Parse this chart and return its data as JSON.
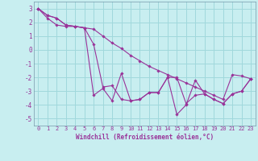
{
  "xlabel": "Windchill (Refroidissement éolien,°C)",
  "background_color": "#c8eef0",
  "grid_color": "#a0d8dc",
  "line_color": "#993399",
  "x_data": [
    0,
    1,
    2,
    3,
    4,
    5,
    6,
    7,
    8,
    9,
    10,
    11,
    12,
    13,
    14,
    15,
    16,
    17,
    18,
    19,
    20,
    21,
    22,
    23
  ],
  "series": [
    [
      3.0,
      2.5,
      2.3,
      1.8,
      1.7,
      1.6,
      1.5,
      1.0,
      0.5,
      0.1,
      -0.4,
      -0.8,
      -1.2,
      -1.5,
      -1.8,
      -2.1,
      -2.4,
      -2.7,
      -3.0,
      -3.3,
      -3.6,
      -1.8,
      -1.9,
      -2.1
    ],
    [
      3.0,
      2.5,
      2.3,
      1.8,
      1.7,
      1.6,
      -3.3,
      -2.8,
      -3.7,
      -1.7,
      -3.7,
      -3.6,
      -3.1,
      -3.1,
      -2.0,
      -4.7,
      -4.0,
      -2.2,
      -3.2,
      -3.6,
      -3.9,
      -3.2,
      -3.0,
      -2.1
    ],
    [
      3.0,
      2.3,
      1.8,
      1.7,
      1.7,
      1.6,
      0.4,
      -2.7,
      -2.6,
      -3.6,
      -3.7,
      -3.6,
      -3.1,
      -3.1,
      -2.0,
      -2.0,
      -3.9,
      -3.3,
      -3.2,
      -3.6,
      -3.9,
      -3.2,
      -3.0,
      -2.1
    ]
  ],
  "xlim": [
    -0.5,
    23.5
  ],
  "ylim": [
    -5.5,
    3.5
  ],
  "yticks": [
    -5,
    -4,
    -3,
    -2,
    -1,
    0,
    1,
    2,
    3
  ],
  "xticks": [
    0,
    1,
    2,
    3,
    4,
    5,
    6,
    7,
    8,
    9,
    10,
    11,
    12,
    13,
    14,
    15,
    16,
    17,
    18,
    19,
    20,
    21,
    22,
    23
  ],
  "tick_fontsize": 5.0,
  "xlabel_fontsize": 5.5
}
